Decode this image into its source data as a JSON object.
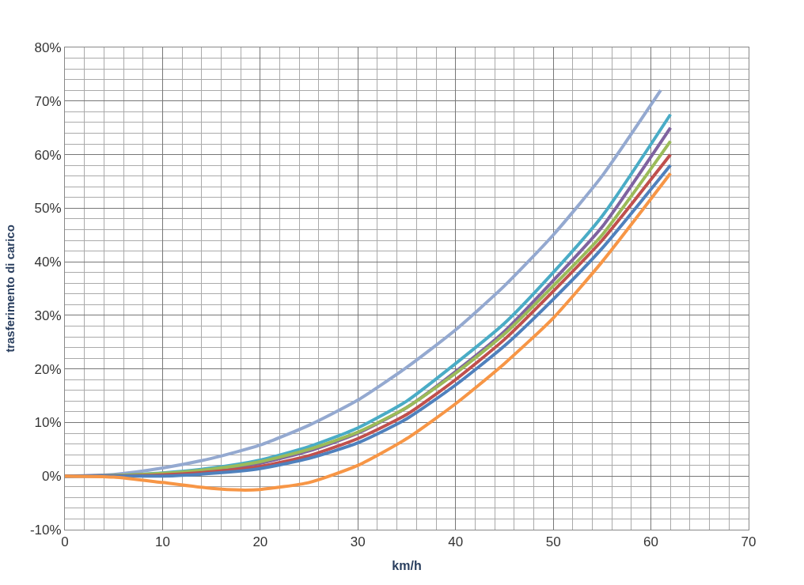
{
  "chart_data": {
    "type": "line",
    "xlabel": "km/h",
    "ylabel": "trasferimento di carico",
    "xlim": [
      0,
      70
    ],
    "xticks": [
      0,
      10,
      20,
      30,
      40,
      50,
      60,
      70
    ],
    "ylim": [
      -10,
      80
    ],
    "yticks": [
      {
        "value": -10,
        "label": "-10%"
      },
      {
        "value": 0,
        "label": "0%"
      },
      {
        "value": 10,
        "label": "10%"
      },
      {
        "value": 20,
        "label": "20%"
      },
      {
        "value": 30,
        "label": "30%"
      },
      {
        "value": 40,
        "label": "40%"
      },
      {
        "value": 50,
        "label": "50%"
      },
      {
        "value": 60,
        "label": "60%"
      },
      {
        "value": 70,
        "label": "70%"
      },
      {
        "value": 80,
        "label": "80%"
      }
    ],
    "grid": true,
    "marker": "none",
    "line_style": "solid",
    "series": [
      {
        "color": "#94a9d0",
        "x": [
          0,
          5,
          10,
          15,
          20,
          25,
          30,
          35,
          40,
          45,
          50,
          55,
          61
        ],
        "values": [
          0,
          0.3,
          1.5,
          3.3,
          5.8,
          9.5,
          14.2,
          20.3,
          27.3,
          35.5,
          45,
          56,
          72
        ]
      },
      {
        "color": "#4aacc6",
        "x": [
          0,
          5,
          10,
          15,
          20,
          25,
          30,
          35,
          40,
          45,
          50,
          55,
          62
        ],
        "values": [
          0,
          0.1,
          0.6,
          1.5,
          3,
          5.5,
          9,
          14,
          21,
          28.5,
          38,
          48.5,
          67.5
        ]
      },
      {
        "color": "#7f63a0",
        "x": [
          0,
          5,
          10,
          15,
          20,
          25,
          30,
          35,
          40,
          45,
          50,
          55,
          62
        ],
        "values": [
          0,
          0.1,
          0.4,
          1.1,
          2.4,
          4.7,
          8,
          12.8,
          19.5,
          27,
          36.5,
          46.5,
          65
        ]
      },
      {
        "color": "#9bbb59",
        "x": [
          0,
          5,
          10,
          15,
          20,
          25,
          30,
          35,
          40,
          45,
          50,
          55,
          62
        ],
        "values": [
          0,
          0.1,
          0.5,
          1.3,
          2.7,
          5,
          8.2,
          12.8,
          19.2,
          26.5,
          35.5,
          45,
          62.5
        ]
      },
      {
        "color": "#c0504d",
        "x": [
          0,
          5,
          10,
          15,
          20,
          25,
          30,
          35,
          40,
          45,
          50,
          55,
          62
        ],
        "values": [
          0,
          0,
          0.2,
          0.8,
          1.8,
          3.8,
          7,
          11.5,
          18,
          25.5,
          34.5,
          44,
          60
        ]
      },
      {
        "color": "#4f81bd",
        "x": [
          0,
          5,
          10,
          15,
          20,
          25,
          30,
          35,
          40,
          45,
          50,
          55,
          62
        ],
        "values": [
          0,
          0,
          0,
          0.5,
          1.4,
          3.3,
          6.2,
          10.7,
          17,
          24.3,
          33,
          42.5,
          58
        ]
      },
      {
        "color": "#f79646",
        "x": [
          0,
          5,
          10,
          15,
          18,
          20,
          25,
          30,
          35,
          40,
          45,
          50,
          55,
          62
        ],
        "values": [
          0,
          -0.2,
          -1.2,
          -2.3,
          -2.6,
          -2.5,
          -1.2,
          2,
          7,
          13.5,
          21,
          29.5,
          40,
          56.5
        ]
      }
    ]
  }
}
